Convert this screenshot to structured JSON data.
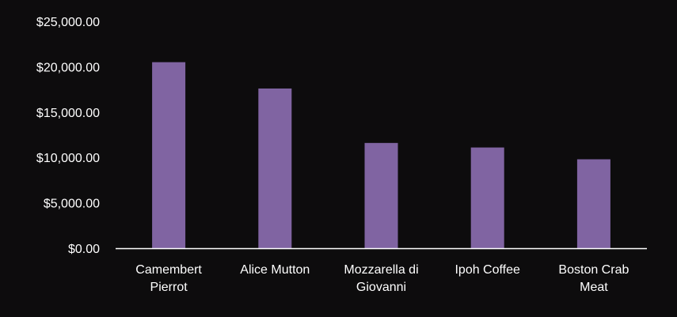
{
  "chart_data": {
    "type": "bar",
    "categories": [
      [
        "Camembert",
        "Pierrot"
      ],
      [
        "Alice Mutton"
      ],
      [
        "Mozzarella di",
        "Giovanni"
      ],
      [
        "Ipoh Coffee"
      ],
      [
        "Boston Crab",
        "Meat"
      ]
    ],
    "values": [
      20500,
      17600,
      11600,
      11100,
      9800
    ],
    "y_ticks": [
      "$0.00",
      "$5,000.00",
      "$10,000.00",
      "$15,000.00",
      "$20,000.00",
      "$25,000.00"
    ],
    "ylim": [
      0,
      25000
    ],
    "title": "",
    "xlabel": "",
    "ylabel": "",
    "grid": false,
    "colors": {
      "bar": "#8064a2",
      "axis": "#ffffff",
      "text": "#ffffff",
      "background": "#0d0c0d"
    }
  }
}
